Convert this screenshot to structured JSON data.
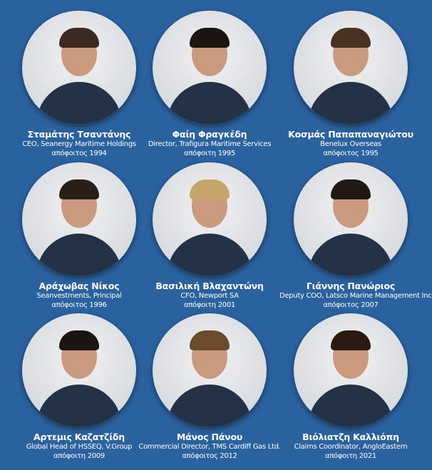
{
  "people": [
    {
      "name": "Σταμάτης Τσαντάνης",
      "role": "CEO, Seanergy Maritime Holdings",
      "grad": "απόφοιτος 1994"
    },
    {
      "name": "Φαίη Φραγκέδη",
      "role": "Director, Trafigura Maritime Services",
      "grad": "απόφοιτη 1995"
    },
    {
      "name": "Κοσμάς Παπαπαναγιώτου",
      "role": "Benelux Overseas",
      "grad": "απόφοιτος 1995"
    },
    {
      "name": "Αράχωβας Νίκος",
      "role": "Seanvestments, Principal",
      "grad": "απόφοιτος 1996"
    },
    {
      "name": "Βασιλική Βλαχαντώνη",
      "role": "CFO, Newport SA",
      "grad": "απόφοιτη 2001"
    },
    {
      "name": "Γιάννης Πανώριος",
      "role": "Deputy COO, Latsco Marine Management Inc.",
      "grad": "απόφοιτος 2007"
    },
    {
      "name": "Αρτεμις Καζατζίδη",
      "role": "Global Head of HSSEQ, V.Group",
      "grad": "απόφοιτη 2009"
    },
    {
      "name": "Μάνος Πάνου",
      "role": "Commercial Director, TMS Cardiff Gas Ltd.",
      "grad": "απόφοιτος 2012"
    },
    {
      "name": "Βιόλιατζη Καλλιόπη",
      "role": "Claims Coordinator, AngloEastern",
      "grad": "απόφοιτη 2021"
    }
  ],
  "colors": {
    "background": "#2a62a0"
  }
}
